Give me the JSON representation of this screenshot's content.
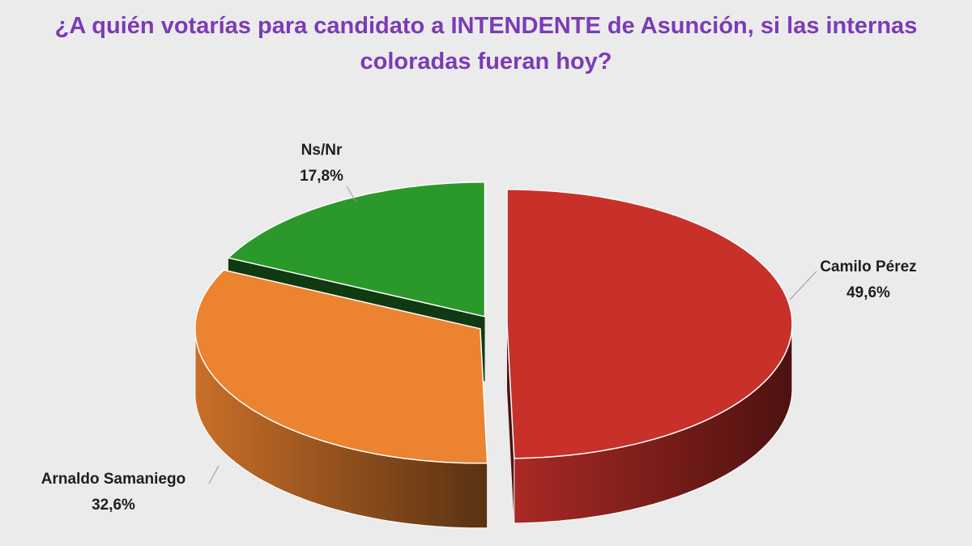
{
  "chart_data": {
    "type": "pie3d",
    "title": "¿A quién votarías para candidato a INTENDENTE de Asunción, si las internas coloradas fueran hoy?",
    "categories": [
      "Camilo Pérez",
      "Arnaldo Samaniego",
      "Ns/Nr"
    ],
    "values": [
      49.6,
      32.6,
      17.8
    ],
    "value_labels": [
      "49,6%",
      "32,6%",
      "17,8%"
    ],
    "colors": [
      "#c8302a",
      "#ec8330",
      "#2b982c"
    ]
  }
}
